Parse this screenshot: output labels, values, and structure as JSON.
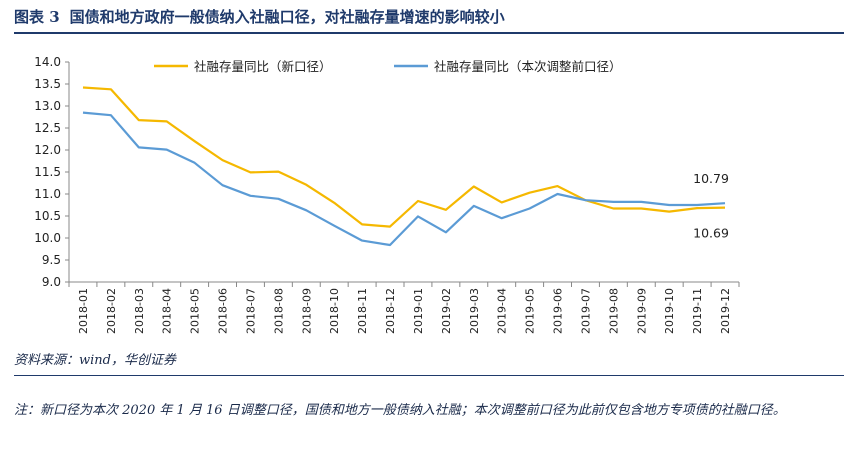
{
  "figure": {
    "title_prefix": "图表 3",
    "title": "国债和地方政府一般债纳入社融口径，对社融存量增速的影响较小",
    "source": "资料来源：wind，华创证券",
    "note": "注：新口径为本次 2020 年 1 月 16 日调整口径，国债和地方一般债纳入社融；本次调整前口径为此前仅包含地方专项债的社融口径。"
  },
  "chart_data": {
    "type": "line",
    "x": [
      "2018-01",
      "2018-02",
      "2018-03",
      "2018-04",
      "2018-05",
      "2018-06",
      "2018-07",
      "2018-08",
      "2018-09",
      "2018-10",
      "2018-11",
      "2018-12",
      "2019-01",
      "2019-02",
      "2019-03",
      "2019-04",
      "2019-05",
      "2019-06",
      "2019-07",
      "2019-08",
      "2019-09",
      "2019-10",
      "2019-11",
      "2019-12"
    ],
    "yticks": [
      "14.0",
      "13.5",
      "13.0",
      "12.5",
      "12.0",
      "11.5",
      "11.0",
      "10.5",
      "10.0",
      "9.5",
      "9.0"
    ],
    "ylim": [
      9.0,
      14.0
    ],
    "grid": false,
    "legend_position": "top",
    "series": [
      {
        "name": "社融存量同比（新口径）",
        "color": "#f5b800",
        "values": [
          13.42,
          13.38,
          12.68,
          12.65,
          12.2,
          11.77,
          11.49,
          11.51,
          11.21,
          10.8,
          10.31,
          10.26,
          10.84,
          10.64,
          11.17,
          10.81,
          11.03,
          11.18,
          10.86,
          10.67,
          10.67,
          10.6,
          10.68,
          10.69
        ]
      },
      {
        "name": "社融存量同比（本次调整前口径）",
        "color": "#5b9bd5",
        "values": [
          12.85,
          12.79,
          12.06,
          12.01,
          11.71,
          11.2,
          10.96,
          10.89,
          10.63,
          10.28,
          9.94,
          9.84,
          10.49,
          10.13,
          10.73,
          10.45,
          10.67,
          11.0,
          10.86,
          10.82,
          10.82,
          10.75,
          10.75,
          10.79
        ]
      }
    ],
    "annotations": [
      {
        "text": "10.79",
        "series": 1,
        "index": 23
      },
      {
        "text": "10.69",
        "series": 0,
        "index": 23
      }
    ]
  }
}
